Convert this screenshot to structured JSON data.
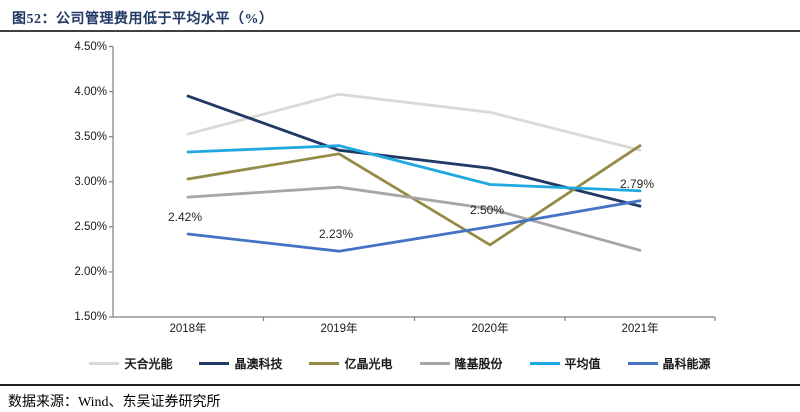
{
  "header": {
    "title": "图52：公司管理费用低于平均水平（%）"
  },
  "chart_data": {
    "type": "line",
    "title": "公司管理费用低于平均水平（%）",
    "categories": [
      "2018年",
      "2019年",
      "2020年",
      "2021年"
    ],
    "series": [
      {
        "name": "天合光能",
        "color": "#d9d9d9",
        "values": [
          3.53,
          3.97,
          3.77,
          3.35
        ]
      },
      {
        "name": "晶澳科技",
        "color": "#1f3864",
        "values": [
          3.95,
          3.35,
          3.15,
          2.73
        ]
      },
      {
        "name": "亿晶光电",
        "color": "#958a46",
        "values": [
          3.03,
          3.31,
          2.3,
          3.4
        ]
      },
      {
        "name": "隆基股份",
        "color": "#a6a6a6",
        "values": [
          2.83,
          2.94,
          2.7,
          2.24
        ]
      },
      {
        "name": "平均值",
        "color": "#20a9e0",
        "values": [
          3.33,
          3.4,
          2.97,
          2.9
        ]
      },
      {
        "name": "晶科能源",
        "color": "#4472c4",
        "values": [
          2.42,
          2.23,
          2.5,
          2.79
        ]
      }
    ],
    "point_labels": [
      {
        "series": "晶科能源",
        "category_index": 0,
        "text": "2.42%"
      },
      {
        "series": "晶科能源",
        "category_index": 1,
        "text": "2.23%"
      },
      {
        "series": "晶科能源",
        "category_index": 2,
        "text": "2.50%"
      },
      {
        "series": "晶科能源",
        "category_index": 3,
        "text": "2.79%"
      }
    ],
    "y_axis": {
      "min": 1.5,
      "max": 4.5,
      "step": 0.5,
      "tick_labels": [
        "4.50%",
        "4.00%",
        "3.50%",
        "3.00%",
        "2.50%",
        "2.00%",
        "1.50%"
      ]
    },
    "grid": false,
    "legend_position": "bottom",
    "axis_color": "#7f7f7f"
  },
  "footer": {
    "source": "数据来源：Wind、东吴证券研究所"
  }
}
